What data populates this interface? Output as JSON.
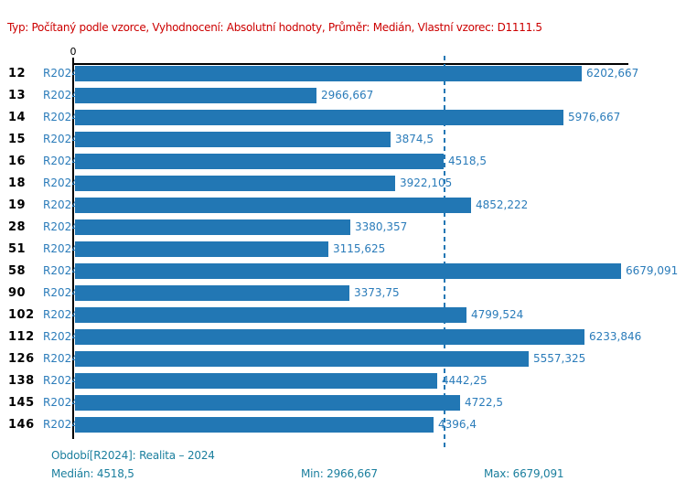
{
  "header": {
    "info_line": "Typ: Počítaný podle vzorce, Vyhodnocení: Absolutní hodnoty, Průměr: Medián, Vlastní vzorec: D1111.5"
  },
  "axis": {
    "zero_label": "0"
  },
  "colors": {
    "bar": "#2277b4",
    "blue_text": "#2b7cba",
    "median_line": "#2277b4",
    "header_text": "#cc0000",
    "footer_text": "#1b7f9e",
    "axis": "#000000"
  },
  "chart_data": {
    "type": "bar",
    "orientation": "horizontal",
    "title": "",
    "xlabel": "",
    "ylabel": "",
    "xlim": [
      0,
      6800
    ],
    "grid": false,
    "series_label": "R2024",
    "categories": [
      "12",
      "13",
      "14",
      "15",
      "16",
      "18",
      "19",
      "28",
      "51",
      "58",
      "90",
      "102",
      "112",
      "126",
      "138",
      "145",
      "146"
    ],
    "values": [
      6202.667,
      2966.667,
      5976.667,
      3874.5,
      4518.5,
      3922.105,
      4852.222,
      3380.357,
      3115.625,
      6679.091,
      3373.75,
      4799.524,
      6233.846,
      5557.325,
      4442.25,
      4722.5,
      4396.4
    ],
    "value_labels": [
      "6202,667",
      "2966,667",
      "5976,667",
      "3874,5",
      "4518,5",
      "3922,105",
      "4852,222",
      "3380,357",
      "3115,625",
      "6679,091",
      "3373,75",
      "4799,524",
      "6233,846",
      "5557,325",
      "4442,25",
      "4722,5",
      "4396,4"
    ],
    "median": 4518.5,
    "min": 2966.667,
    "max": 6679.091
  },
  "footer": {
    "period_line": "Období[R2024]: Realita – 2024",
    "median_label": "Medián: 4518,5",
    "min_label": "Min: 2966,667",
    "max_label": "Max: 6679,091"
  }
}
